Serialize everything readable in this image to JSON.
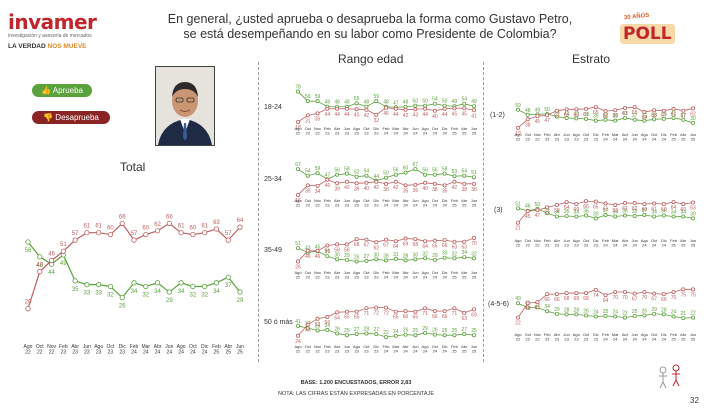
{
  "brand": {
    "name": "invamer",
    "subtitle": "investigación y asesoría de mercados",
    "tagline_a": "LA VERDAD ",
    "tagline_b": "NOS MUEVE"
  },
  "headline": {
    "line1": "En general, ¿usted aprueba o desaprueba la forma como Gustavo Petro,",
    "line2": "se está desempeñando en su labor como Presidente de Colombia?"
  },
  "poll_badge": {
    "anio": "30 AÑOS",
    "label": "POLL"
  },
  "legend": {
    "aprueba": "Aprueba",
    "desaprueba": "Desaprueba"
  },
  "sections": {
    "total": "Total",
    "edad": "Rango edad",
    "estrato": "Estrato"
  },
  "footer": {
    "base": "BASE: 1.200 ENCUESTADOS, ERROR 2,83",
    "nota": "NOTA: LAS CIFRAS ESTÁN EXPRESADAS EN PORCENTAJE"
  },
  "page_number": "32",
  "colors": {
    "aprueba": "#5aa23c",
    "desaprueba": "#c06060"
  },
  "chart_data": [
    {
      "type": "line",
      "title": "Total",
      "categories": [
        "Ago 22",
        "Oct 22",
        "Nov 22",
        "Feb 23",
        "Abr 23",
        "Jun 23",
        "Ago 23",
        "Oct 23",
        "Dic 23",
        "Feb 24",
        "Mar 24",
        "Abr 24",
        "Jun 24",
        "Ago 24",
        "Oct 24",
        "Dic 24",
        "Feb 25",
        "Abr 25",
        "Jun 25"
      ],
      "series": [
        {
          "name": "Aprueba",
          "values": [
            56,
            48,
            44,
            49,
            35,
            33,
            33,
            32,
            26,
            34,
            32,
            34,
            29,
            34,
            32,
            32,
            34,
            37,
            29
          ]
        },
        {
          "name": "Desaprueba",
          "values": [
            20,
            40,
            46,
            51,
            57,
            61,
            61,
            60,
            66,
            57,
            60,
            62,
            66,
            61,
            60,
            61,
            63,
            57,
            64
          ]
        }
      ],
      "label_indices": [
        0,
        1,
        2,
        3,
        4,
        5,
        6,
        7,
        8,
        9,
        10,
        11,
        12,
        13,
        14,
        15,
        16,
        17,
        18
      ]
    },
    {
      "type": "line",
      "title": "18-24",
      "categories": [
        "Ago 22",
        "Oct 22",
        "Nov 22",
        "Feb 23",
        "Abr 23",
        "Jun 23",
        "Ago 23",
        "Oct 23",
        "Dic 23",
        "Feb 24",
        "Mar 24",
        "Abr 24",
        "Jun 24",
        "Ago 24",
        "Oct 24",
        "Dic 24",
        "Feb 25",
        "Abr 25",
        "Jun 25"
      ],
      "series": [
        {
          "name": "Aprueba",
          "values": [
            78,
            59,
            59,
            48,
            48,
            48,
            55,
            48,
            59,
            48,
            47,
            48,
            50,
            50,
            54,
            50,
            49,
            54,
            49
          ]
        },
        {
          "name": "Desaprueba",
          "values": [
            18,
            31,
            35,
            44,
            44,
            44,
            43,
            42,
            32,
            46,
            44,
            42,
            43,
            44,
            40,
            44,
            45,
            45,
            41
          ]
        }
      ]
    },
    {
      "type": "line",
      "title": "25-34",
      "categories": [
        "Ago 22",
        "Oct 22",
        "Nov 22",
        "Feb 23",
        "Abr 23",
        "Jun 23",
        "Ago 23",
        "Oct 23",
        "Dic 23",
        "Feb 24",
        "Mar 24",
        "Abr 24",
        "Jun 24",
        "Ago 24",
        "Oct 24",
        "Dic 24",
        "Feb 25",
        "Abr 25",
        "Jun 25"
      ],
      "series": [
        {
          "name": "Aprueba",
          "values": [
            67,
            54,
            59,
            47,
            56,
            58,
            52,
            54,
            44,
            50,
            56,
            60,
            67,
            56,
            56,
            58,
            53,
            54,
            51
          ]
        },
        {
          "name": "Desaprueba",
          "values": [
            16,
            35,
            34,
            46,
            39,
            42,
            39,
            40,
            42,
            38,
            42,
            35,
            36,
            40,
            38,
            35,
            42,
            38,
            38
          ]
        }
      ]
    },
    {
      "type": "line",
      "title": "35-49",
      "categories": [
        "Ago 22",
        "Oct 22",
        "Nov 22",
        "Feb 23",
        "Abr 23",
        "Jun 23",
        "Ago 23",
        "Oct 23",
        "Dic 23",
        "Feb 24",
        "Mar 24",
        "Abr 24",
        "Jun 24",
        "Ago 24",
        "Oct 24",
        "Dic 24",
        "Feb 25",
        "Abr 25",
        "Jun 25"
      ],
      "series": [
        {
          "name": "Aprueba",
          "values": [
            51,
            43,
            45,
            36,
            30,
            29,
            26,
            27,
            30,
            28,
            31,
            28,
            30,
            32,
            29,
            33,
            32,
            34,
            32
          ]
        },
        {
          "name": "Desaprueba",
          "values": [
            26,
            46,
            46,
            56,
            58,
            58,
            68,
            67,
            62,
            67,
            64,
            69,
            68,
            64,
            65,
            66,
            63,
            63,
            70
          ]
        }
      ]
    },
    {
      "type": "line",
      "title": "50 ó más",
      "categories": [
        "Ago 22",
        "Oct 22",
        "Nov 22",
        "Feb 23",
        "Abr 23",
        "Jun 23",
        "Ago 23",
        "Oct 23",
        "Dic 23",
        "Feb 24",
        "Mar 24",
        "Abr 24",
        "Jun 24",
        "Ago 24",
        "Oct 24",
        "Dic 24",
        "Feb 25",
        "Abr 25",
        "Jun 25"
      ],
      "series": [
        {
          "name": "Aprueba",
          "values": [
            41,
            37,
            33,
            34,
            28,
            25,
            27,
            28,
            27,
            22,
            24,
            26,
            25,
            29,
            26,
            25,
            25,
            27,
            25
          ]
        },
        {
          "name": "Desaprueba",
          "values": [
            24,
            43,
            53,
            56,
            64,
            65,
            65,
            71,
            72,
            72,
            65,
            66,
            65,
            71,
            66,
            66,
            71,
            63,
            69
          ]
        }
      ]
    },
    {
      "type": "line",
      "title": "(1-2)",
      "categories": [
        "Ago 22",
        "Oct 22",
        "Nov 22",
        "Feb 23",
        "Abr 23",
        "Jun 23",
        "Ago 23",
        "Oct 23",
        "Dic 23",
        "Feb 24",
        "Mar 24",
        "Abr 24",
        "Jun 24",
        "Ago 24",
        "Oct 24",
        "Dic 24",
        "Feb 25",
        "Abr 25",
        "Jun 25"
      ],
      "series": [
        {
          "name": "Aprueba",
          "values": [
            59,
            48,
            49,
            50,
            44,
            41,
            40,
            39,
            35,
            37,
            35,
            41,
            37,
            35,
            38,
            39,
            41,
            37,
            30
          ]
        },
        {
          "name": "Desaprueba",
          "values": [
            19,
            38,
            45,
            47,
            57,
            60,
            60,
            61,
            65,
            56,
            58,
            63,
            65,
            54,
            58,
            57,
            61,
            57,
            62
          ]
        }
      ]
    },
    {
      "type": "line",
      "title": "(3)",
      "categories": [
        "Ago 22",
        "Oct 22",
        "Nov 22",
        "Feb 23",
        "Abr 23",
        "Jun 23",
        "Ago 23",
        "Oct 23",
        "Dic 23",
        "Feb 24",
        "Mar 24",
        "Abr 24",
        "Jun 24",
        "Ago 24",
        "Oct 24",
        "Dic 24",
        "Feb 25",
        "Abr 25",
        "Jun 25"
      ],
      "series": [
        {
          "name": "Aprueba",
          "values": [
            51,
            46,
            50,
            41,
            34,
            35,
            34,
            36,
            30,
            37,
            34,
            36,
            35,
            37,
            34,
            36,
            34,
            34,
            30
          ]
        },
        {
          "name": "Desaprueba",
          "values": [
            21,
            45,
            47,
            53,
            58,
            64,
            60,
            66,
            65,
            61,
            58,
            62,
            62,
            60,
            61,
            60,
            64,
            60,
            63
          ]
        }
      ]
    },
    {
      "type": "line",
      "title": "(4-5-6)",
      "categories": [
        "Ago 22",
        "Oct 22",
        "Nov 22",
        "Feb 23",
        "Abr 23",
        "Jun 23",
        "Ago 23",
        "Oct 23",
        "Dic 23",
        "Feb 24",
        "Mar 24",
        "Abr 24",
        "Jun 24",
        "Ago 24",
        "Oct 24",
        "Dic 24",
        "Feb 25",
        "Abr 25",
        "Jun 25"
      ],
      "series": [
        {
          "name": "Aprueba",
          "values": [
            49,
            41,
            41,
            34,
            29,
            28,
            28,
            26,
            24,
            25,
            24,
            22,
            25,
            26,
            29,
            28,
            24,
            21,
            22
          ]
        },
        {
          "name": "Desaprueba",
          "values": [
            22,
            49,
            51,
            66,
            66,
            68,
            68,
            68,
            74,
            64,
            70,
            70,
            67,
            70,
            67,
            66,
            70,
            75,
            75
          ]
        }
      ]
    }
  ]
}
